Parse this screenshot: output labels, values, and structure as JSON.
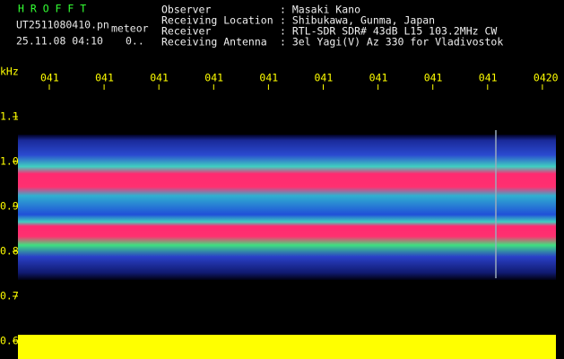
{
  "header": {
    "title": "H R O F F T",
    "file": "UT2511080410.pn",
    "mode": "meteor",
    "datetime": "25.11.08 04:10",
    "counter": "0.."
  },
  "info": {
    "rows": [
      [
        "Observer",
        ": Masaki Kano"
      ],
      [
        "Receiving Location",
        ": Shibukawa, Gunma, Japan"
      ],
      [
        "Receiver",
        ": RTL-SDR SDR# 43dB L15 103.2MHz CW"
      ],
      [
        "Receiving Antenna",
        ": 3el Yagi(V) Az 330 for Vladivostok"
      ]
    ]
  },
  "axes": {
    "y_unit": "kHz",
    "y_labels": [
      "1.1",
      "1.0",
      "0.9",
      "0.8",
      "0.7",
      "0.6"
    ],
    "x_labels": [
      "041",
      "041",
      "041",
      "041",
      "041",
      "041",
      "041",
      "041",
      "041",
      "0420"
    ]
  }
}
